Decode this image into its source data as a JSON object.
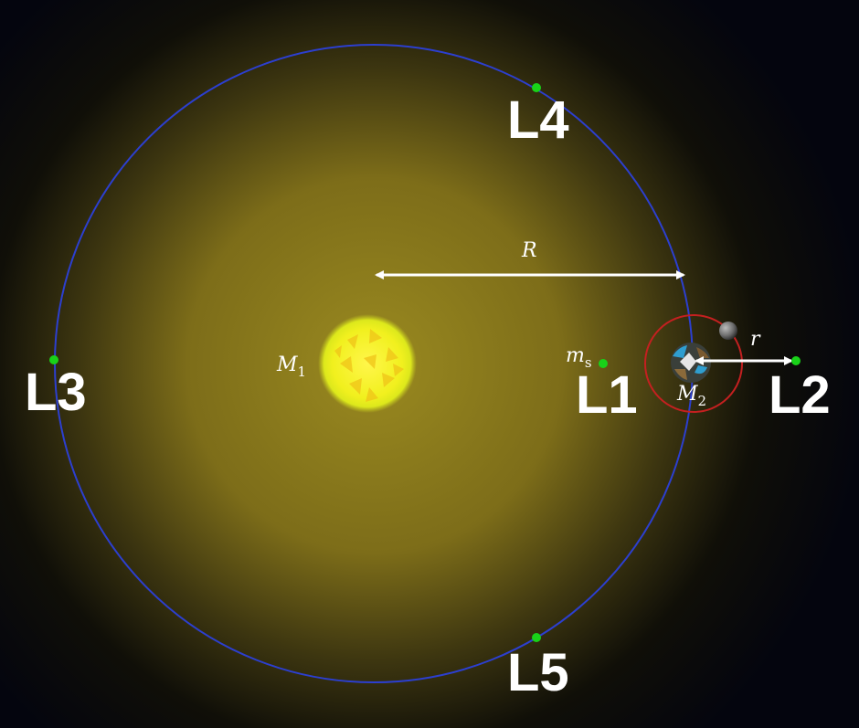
{
  "colors": {
    "background": "#04050e",
    "glow": "#8a7a1e",
    "orbit": "#2c3fcf",
    "moon_orbit": "#c42020",
    "lagrange_point": "#19d219",
    "text": "#ffffff",
    "sun": "#f4f31a"
  },
  "bodies": {
    "sun": {
      "symbol": "M",
      "subscript": "1",
      "icon": "sun-icon"
    },
    "earth": {
      "symbol": "M",
      "subscript": "2",
      "icon": "earth-icon"
    },
    "moon": {
      "icon": "moon-icon"
    },
    "satellite": {
      "symbol": "m",
      "subscript": "s"
    }
  },
  "distances": {
    "big": "R",
    "small": "r"
  },
  "lagrange_points": {
    "L1": "L1",
    "L2": "L2",
    "L3": "L3",
    "L4": "L4",
    "L5": "L5"
  }
}
